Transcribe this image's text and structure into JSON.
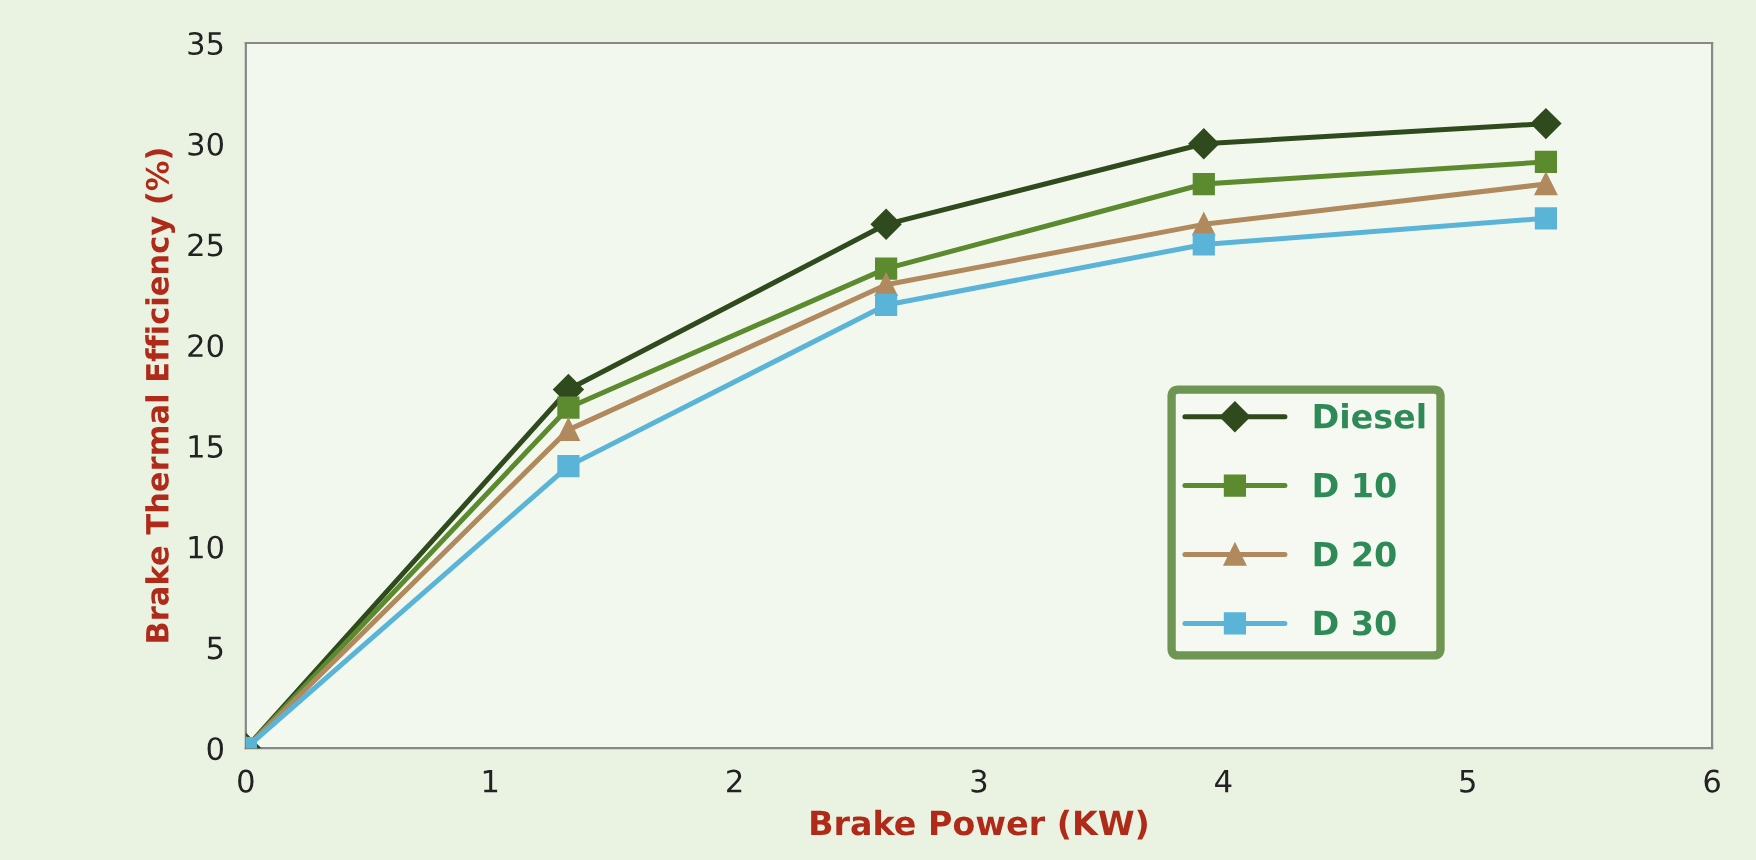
{
  "chart_data": {
    "type": "line",
    "xlabel": "Brake Power (KW)",
    "ylabel": "Brake Thermal Efficiency (%)",
    "xlim": [
      0,
      6
    ],
    "xticks": [
      0,
      1,
      2,
      3,
      4,
      5,
      6
    ],
    "ylim": [
      0,
      35
    ],
    "yticks": [
      0,
      5,
      10,
      15,
      20,
      25,
      30,
      35
    ],
    "grid": false,
    "legend": "right",
    "x": [
      0,
      1.32,
      2.62,
      3.92,
      5.32
    ],
    "series": [
      {
        "name": "Diesel",
        "color": "#2f4a1c",
        "marker": "diamond",
        "values": [
          0,
          17.8,
          26,
          30,
          31
        ]
      },
      {
        "name": "D 10",
        "color": "#5c8a2e",
        "marker": "square",
        "values": [
          0,
          16.9,
          23.8,
          28,
          29.1
        ]
      },
      {
        "name": "D 20",
        "color": "#b08a5e",
        "marker": "triangle",
        "values": [
          0,
          15.8,
          23,
          26,
          28
        ]
      },
      {
        "name": "D 30",
        "color": "#5ab4d8",
        "marker": "square",
        "values": [
          0,
          14,
          22,
          25,
          26.3
        ]
      }
    ]
  }
}
